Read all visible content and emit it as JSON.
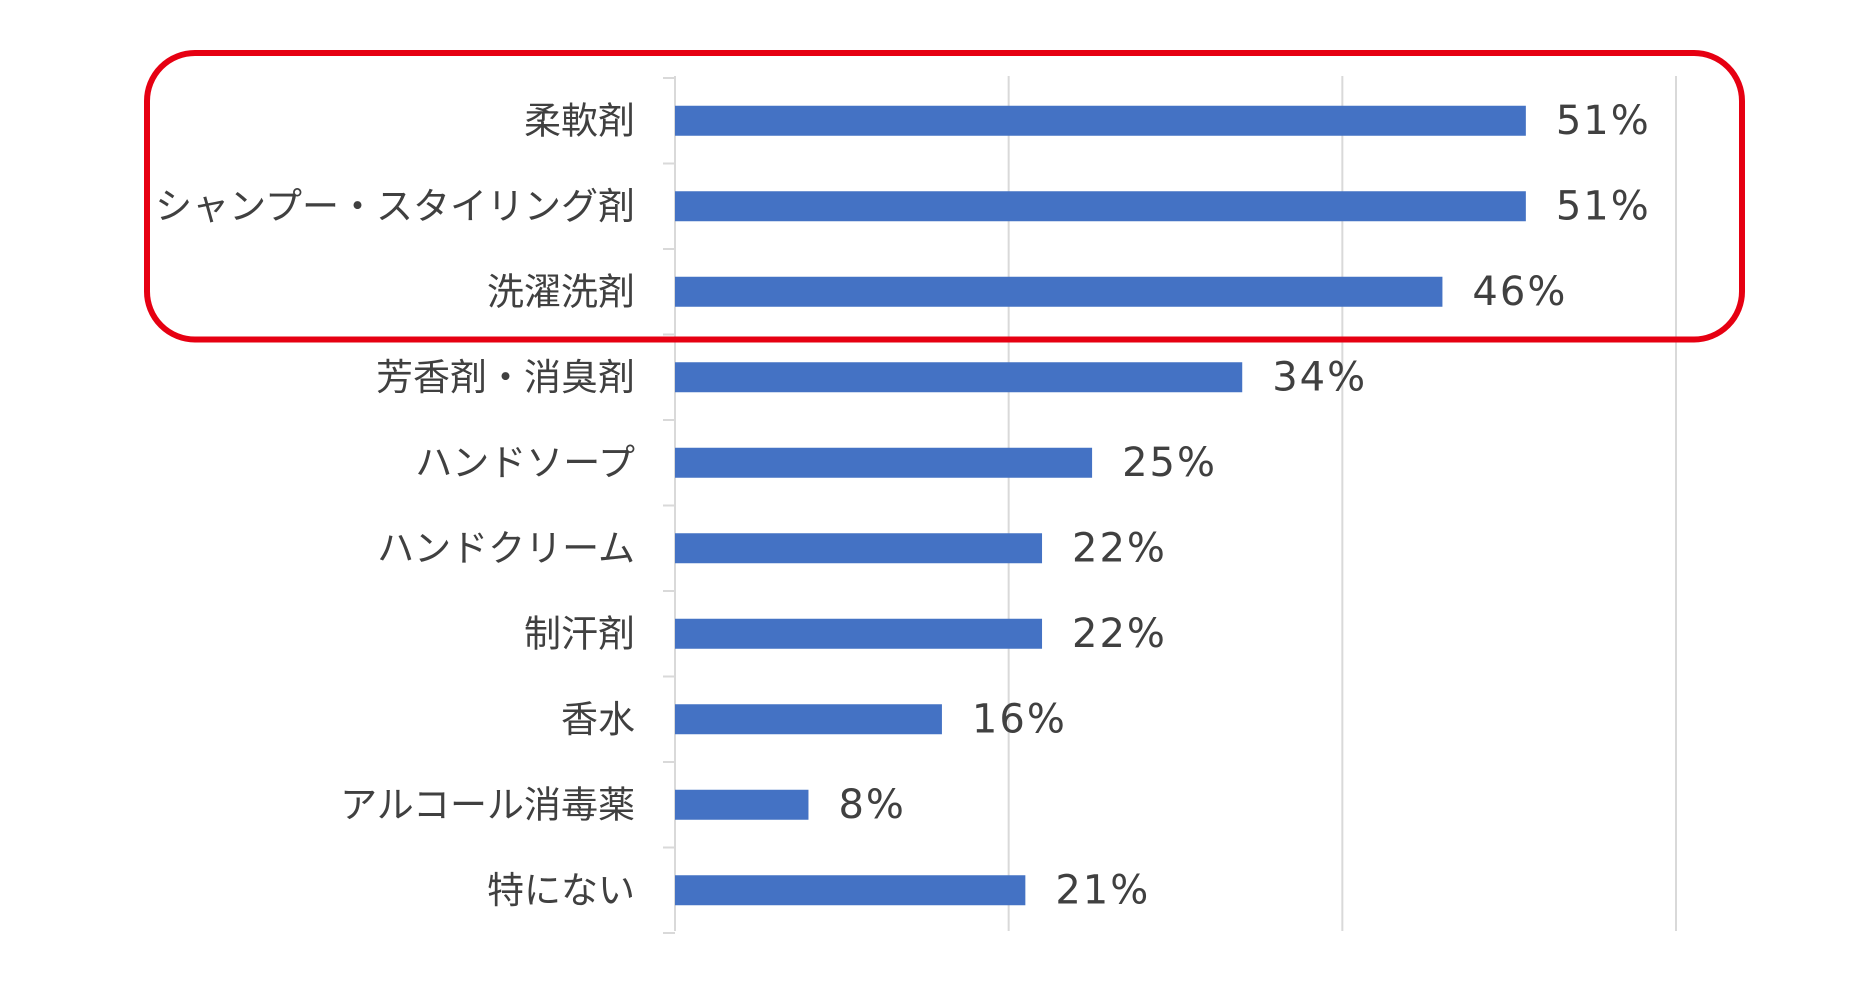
{
  "chart_data": {
    "type": "bar",
    "orientation": "horizontal",
    "title": "",
    "xlabel": "",
    "ylabel": "",
    "categories": [
      "柔軟剤",
      "シャンプー・スタイリング剤",
      "洗濯洗剤",
      "芳香剤・消臭剤",
      "ハンドソープ",
      "ハンドクリーム",
      "制汗剤",
      "香水",
      "アルコール消毒薬",
      "特にない"
    ],
    "values": [
      51,
      51,
      46,
      34,
      25,
      22,
      22,
      16,
      8,
      21
    ],
    "value_labels": [
      "51%",
      "51%",
      "46%",
      "34%",
      "25%",
      "22%",
      "22%",
      "16%",
      "8%",
      "21%"
    ],
    "xlim": [
      0,
      60
    ],
    "grid": true,
    "tick_labels_visible": false,
    "bar_color": "#4472C4",
    "grid_color": "#D9D9D9",
    "highlight": {
      "categories": [
        "柔軟剤",
        "シャンプー・スタイリング剤",
        "洗濯洗剤"
      ],
      "color": "#E60012"
    }
  }
}
